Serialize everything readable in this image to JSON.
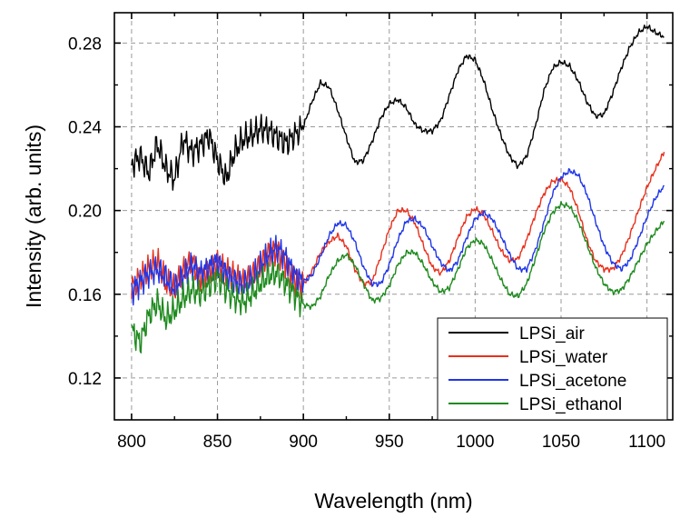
{
  "chart_data": {
    "type": "line",
    "xlabel": "Wavelength (nm)",
    "ylabel": "Intensity (arb. units)",
    "xlim": [
      790,
      1115
    ],
    "ylim": [
      0.1,
      0.2945
    ],
    "xticks": [
      800,
      850,
      900,
      950,
      1000,
      1050,
      1100
    ],
    "yticks": [
      0.12,
      0.16,
      0.2,
      0.24,
      0.28
    ],
    "ytick_labels": [
      "0.12",
      "0.16",
      "0.20",
      "0.24",
      "0.28"
    ],
    "grid": true,
    "legend_position": "bottom-right",
    "series": [
      {
        "name": "LPSi_air",
        "color": "#000000",
        "x": [
          800,
          805,
          810,
          815,
          820,
          825,
          830,
          835,
          840,
          845,
          850,
          855,
          860,
          865,
          870,
          875,
          880,
          885,
          890,
          895,
          900,
          905,
          910,
          915,
          920,
          925,
          930,
          935,
          940,
          945,
          950,
          955,
          960,
          965,
          970,
          975,
          980,
          985,
          990,
          995,
          1000,
          1005,
          1010,
          1015,
          1020,
          1025,
          1030,
          1035,
          1040,
          1045,
          1050,
          1055,
          1060,
          1065,
          1070,
          1075,
          1080,
          1085,
          1090,
          1095,
          1100,
          1105,
          1110
        ],
        "y": [
          0.222,
          0.226,
          0.218,
          0.232,
          0.22,
          0.215,
          0.234,
          0.228,
          0.231,
          0.236,
          0.224,
          0.215,
          0.228,
          0.234,
          0.236,
          0.239,
          0.238,
          0.235,
          0.232,
          0.236,
          0.24,
          0.252,
          0.261,
          0.259,
          0.248,
          0.235,
          0.223,
          0.224,
          0.233,
          0.244,
          0.251,
          0.253,
          0.249,
          0.241,
          0.238,
          0.238,
          0.243,
          0.255,
          0.267,
          0.274,
          0.272,
          0.262,
          0.248,
          0.236,
          0.226,
          0.221,
          0.226,
          0.24,
          0.257,
          0.268,
          0.271,
          0.269,
          0.262,
          0.252,
          0.245,
          0.246,
          0.256,
          0.268,
          0.278,
          0.285,
          0.288,
          0.285,
          0.283
        ]
      },
      {
        "name": "LPSi_water",
        "color": "#e8301c",
        "x": [
          800,
          805,
          810,
          815,
          820,
          825,
          830,
          835,
          840,
          845,
          850,
          855,
          860,
          865,
          870,
          875,
          880,
          885,
          890,
          895,
          900,
          905,
          910,
          915,
          920,
          925,
          930,
          935,
          940,
          945,
          950,
          955,
          960,
          965,
          970,
          975,
          980,
          985,
          990,
          995,
          1000,
          1005,
          1010,
          1015,
          1020,
          1025,
          1030,
          1035,
          1040,
          1045,
          1050,
          1055,
          1060,
          1065,
          1070,
          1075,
          1080,
          1085,
          1090,
          1095,
          1100,
          1105,
          1110
        ],
        "y": [
          0.163,
          0.168,
          0.172,
          0.175,
          0.165,
          0.162,
          0.171,
          0.176,
          0.168,
          0.172,
          0.175,
          0.171,
          0.168,
          0.165,
          0.168,
          0.174,
          0.18,
          0.181,
          0.175,
          0.167,
          0.165,
          0.171,
          0.18,
          0.185,
          0.188,
          0.183,
          0.172,
          0.165,
          0.166,
          0.178,
          0.191,
          0.2,
          0.2,
          0.194,
          0.183,
          0.173,
          0.17,
          0.176,
          0.187,
          0.197,
          0.201,
          0.198,
          0.19,
          0.181,
          0.176,
          0.177,
          0.186,
          0.198,
          0.208,
          0.214,
          0.215,
          0.211,
          0.2,
          0.186,
          0.176,
          0.172,
          0.172,
          0.178,
          0.188,
          0.2,
          0.211,
          0.22,
          0.228
        ]
      },
      {
        "name": "LPSi_acetone",
        "color": "#1f36e8",
        "x": [
          800,
          805,
          810,
          815,
          820,
          825,
          830,
          835,
          840,
          845,
          850,
          855,
          860,
          865,
          870,
          875,
          880,
          885,
          890,
          895,
          900,
          905,
          910,
          915,
          920,
          925,
          930,
          935,
          940,
          945,
          950,
          955,
          960,
          965,
          970,
          975,
          980,
          985,
          990,
          995,
          1000,
          1005,
          1010,
          1015,
          1020,
          1025,
          1030,
          1035,
          1040,
          1045,
          1050,
          1055,
          1060,
          1065,
          1070,
          1075,
          1080,
          1085,
          1090,
          1095,
          1100,
          1105,
          1110
        ],
        "y": [
          0.162,
          0.166,
          0.17,
          0.172,
          0.168,
          0.163,
          0.169,
          0.174,
          0.17,
          0.173,
          0.176,
          0.17,
          0.166,
          0.164,
          0.167,
          0.173,
          0.179,
          0.182,
          0.177,
          0.169,
          0.166,
          0.169,
          0.178,
          0.188,
          0.194,
          0.193,
          0.185,
          0.173,
          0.165,
          0.165,
          0.174,
          0.186,
          0.195,
          0.196,
          0.192,
          0.183,
          0.175,
          0.171,
          0.176,
          0.187,
          0.196,
          0.199,
          0.196,
          0.188,
          0.179,
          0.172,
          0.172,
          0.181,
          0.194,
          0.208,
          0.216,
          0.219,
          0.217,
          0.208,
          0.195,
          0.183,
          0.175,
          0.172,
          0.176,
          0.186,
          0.197,
          0.206,
          0.212
        ]
      },
      {
        "name": "LPSi_ethanol",
        "color": "#1e8a1e",
        "x": [
          800,
          805,
          810,
          815,
          820,
          825,
          830,
          835,
          840,
          845,
          850,
          855,
          860,
          865,
          870,
          875,
          880,
          885,
          890,
          895,
          900,
          905,
          910,
          915,
          920,
          925,
          930,
          935,
          940,
          945,
          950,
          955,
          960,
          965,
          970,
          975,
          980,
          985,
          990,
          995,
          1000,
          1005,
          1010,
          1015,
          1020,
          1025,
          1030,
          1035,
          1040,
          1045,
          1050,
          1055,
          1060,
          1065,
          1070,
          1075,
          1080,
          1085,
          1090,
          1095,
          1100,
          1105,
          1110
        ],
        "y": [
          0.143,
          0.137,
          0.15,
          0.156,
          0.148,
          0.152,
          0.158,
          0.162,
          0.16,
          0.164,
          0.168,
          0.162,
          0.158,
          0.156,
          0.16,
          0.165,
          0.169,
          0.17,
          0.165,
          0.16,
          0.155,
          0.154,
          0.159,
          0.169,
          0.176,
          0.179,
          0.174,
          0.165,
          0.157,
          0.158,
          0.164,
          0.174,
          0.18,
          0.18,
          0.174,
          0.166,
          0.161,
          0.163,
          0.172,
          0.182,
          0.186,
          0.184,
          0.176,
          0.167,
          0.16,
          0.159,
          0.165,
          0.177,
          0.19,
          0.199,
          0.203,
          0.202,
          0.195,
          0.184,
          0.173,
          0.165,
          0.161,
          0.162,
          0.168,
          0.176,
          0.184,
          0.19,
          0.195
        ]
      }
    ]
  }
}
